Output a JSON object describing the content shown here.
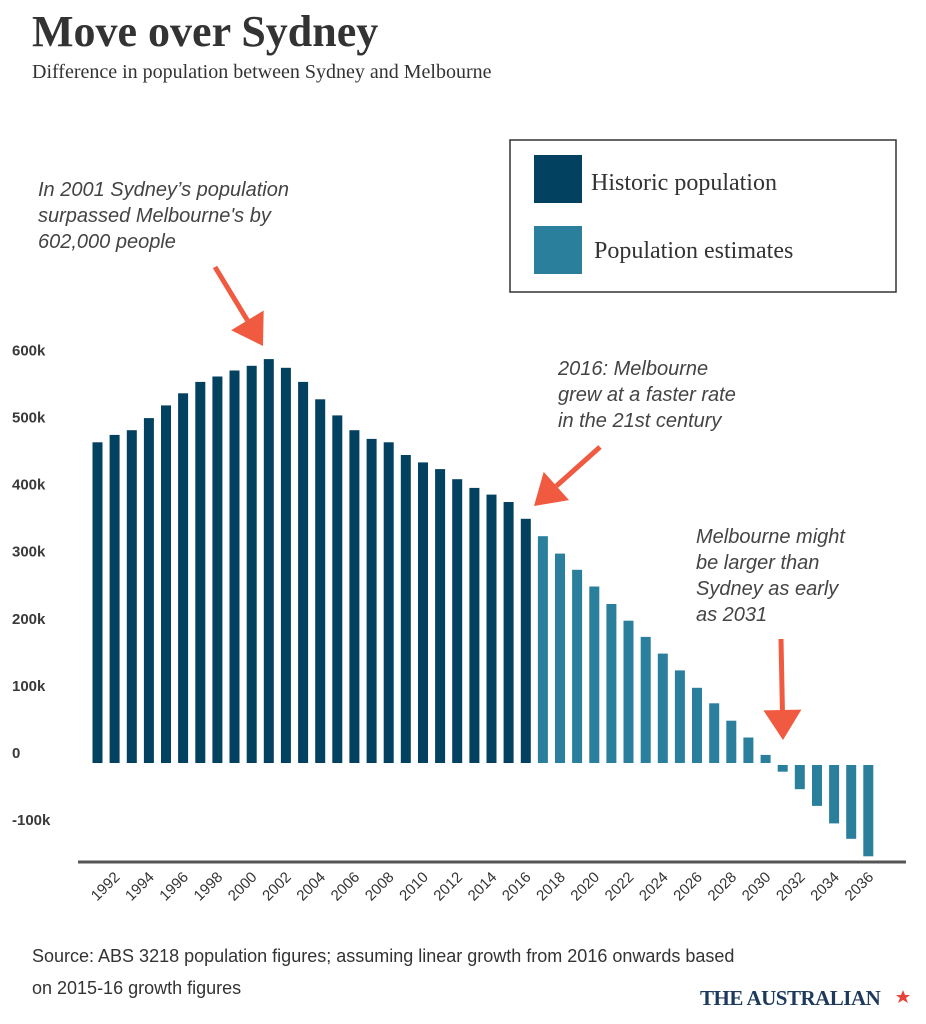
{
  "chart_data": {
    "type": "bar",
    "title": "Move over Sydney",
    "subtitle": "Difference in population between Sydney and Melbourne",
    "xlabel": "",
    "ylabel": "",
    "ylim": [
      -148,
      620
    ],
    "y_ticks": [
      {
        "value": 600,
        "label": "600k"
      },
      {
        "value": 500,
        "label": "500k"
      },
      {
        "value": 400,
        "label": "400k"
      },
      {
        "value": 300,
        "label": "300k"
      },
      {
        "value": 200,
        "label": "200k"
      },
      {
        "value": 100,
        "label": "100k"
      },
      {
        "value": 0,
        "label": "0"
      },
      {
        "value": -100,
        "label": "-100k"
      }
    ],
    "x_tick_labels": [
      "1992",
      "1994",
      "1996",
      "1998",
      "2000",
      "2002",
      "2004",
      "2006",
      "2008",
      "2010",
      "2012",
      "2014",
      "2016",
      "2018",
      "2020",
      "2022",
      "2024",
      "2026",
      "2028",
      "2030",
      "2032",
      "2034",
      "2036"
    ],
    "grid": false,
    "legend_placement": "top-right",
    "units": "thousands of people",
    "series": [
      {
        "name": "Historic population",
        "color": "#02415f",
        "x": [
          1991,
          1992,
          1993,
          1994,
          1995,
          1996,
          1997,
          1998,
          1999,
          2000,
          2001,
          2002,
          2003,
          2004,
          2005,
          2006,
          2007,
          2008,
          2009,
          2010,
          2011,
          2012,
          2013,
          2014,
          2015,
          2016
        ],
        "values": [
          478,
          489,
          496,
          514,
          533,
          551,
          568,
          576,
          585,
          592,
          602,
          589,
          568,
          542,
          518,
          496,
          483,
          478,
          459,
          448,
          438,
          423,
          410,
          400,
          389,
          364
        ]
      },
      {
        "name": "Population estimates",
        "color": "#2a7f9c",
        "x": [
          2017,
          2018,
          2019,
          2020,
          2021,
          2022,
          2023,
          2024,
          2025,
          2026,
          2027,
          2028,
          2029,
          2030,
          2031,
          2032,
          2033,
          2034,
          2035,
          2036
        ],
        "values": [
          338,
          312,
          288,
          263,
          237,
          212,
          188,
          163,
          138,
          112,
          89,
          63,
          38,
          12,
          -10,
          -36,
          -61,
          -87,
          -110,
          -136
        ]
      }
    ],
    "annotations": [
      {
        "lines": [
          "In 2001 Sydney’s population",
          "surpassed Melbourne's by",
          "602,000 people"
        ],
        "points_to": 2001
      },
      {
        "lines": [
          "2016: Melbourne",
          "grew at a faster rate",
          "in the 21st century"
        ],
        "points_to": 2016
      },
      {
        "lines": [
          "Melbourne might",
          "be larger than",
          "Sydney as early",
          "as 2031"
        ],
        "points_to": 2031
      }
    ],
    "annotation_color": "#f05a40"
  },
  "source": {
    "lines": [
      "Source:  ABS 3218 population figures; assuming linear growth from 2016 onwards based",
      "on 2015-16 growth figures"
    ]
  },
  "logo": {
    "text": "THE AUSTRALIAN"
  }
}
